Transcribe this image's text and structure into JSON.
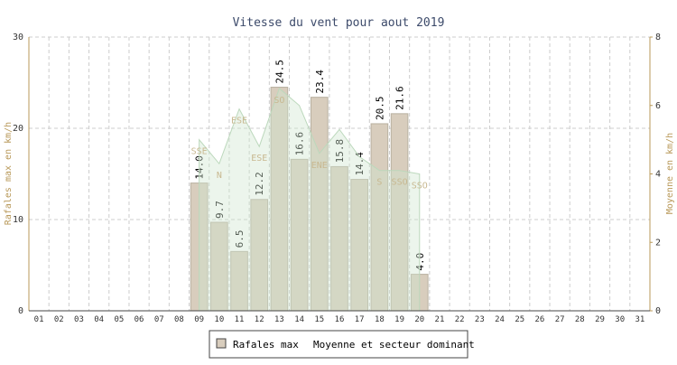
{
  "chart_data": {
    "type": "bar",
    "title": "Vitesse du vent pour aout 2019",
    "categories": [
      "01",
      "02",
      "03",
      "04",
      "05",
      "06",
      "07",
      "08",
      "09",
      "10",
      "11",
      "12",
      "13",
      "14",
      "15",
      "16",
      "17",
      "18",
      "19",
      "20",
      "21",
      "22",
      "23",
      "24",
      "25",
      "26",
      "27",
      "28",
      "29",
      "30",
      "31"
    ],
    "ylabel": "Rafales max en km/h",
    "y2label": "Moyenne en km/h",
    "ylim": [
      0,
      30
    ],
    "yticks": [
      0,
      10,
      20,
      30
    ],
    "y2lim": [
      0,
      8
    ],
    "y2ticks": [
      0,
      2,
      4,
      6,
      8
    ],
    "grid": true,
    "series": [
      {
        "name": "Rafales max",
        "color": "#d8cdbd",
        "values": [
          null,
          null,
          null,
          null,
          null,
          null,
          null,
          null,
          14,
          9.7,
          6.5,
          12.2,
          24.5,
          16.6,
          23.4,
          15.8,
          14.4,
          20.5,
          21.6,
          4,
          null,
          null,
          null,
          null,
          null,
          null,
          null,
          null,
          null,
          null,
          null
        ],
        "value_labels": [
          null,
          null,
          null,
          null,
          null,
          null,
          null,
          null,
          "14.0",
          "9.7",
          "6.5",
          "12.2",
          "24.5",
          "16.6",
          "23.4",
          "15.8",
          "14.4",
          "20.5",
          "21.6",
          "4.0",
          null,
          null,
          null,
          null,
          null,
          null,
          null,
          null,
          null,
          null,
          null
        ]
      },
      {
        "name": "Moyenne et secteur dominant",
        "color": "#cfe6cf",
        "axis": "y2",
        "type": "area",
        "values": [
          null,
          null,
          null,
          null,
          null,
          null,
          null,
          null,
          5.0,
          4.3,
          5.9,
          4.8,
          6.5,
          6.0,
          4.6,
          5.3,
          4.5,
          4.1,
          4.1,
          4.0,
          null,
          null,
          null,
          null,
          null,
          null,
          null,
          null,
          null,
          null,
          null
        ],
        "sectors": [
          null,
          null,
          null,
          null,
          null,
          null,
          null,
          null,
          "SSE",
          "N",
          "ESE",
          "ESE",
          "SO",
          null,
          "ENE",
          null,
          null,
          "S",
          "SSO",
          "SSO",
          null,
          null,
          null,
          null,
          null,
          null,
          null,
          null,
          null,
          null,
          null
        ]
      }
    ]
  }
}
